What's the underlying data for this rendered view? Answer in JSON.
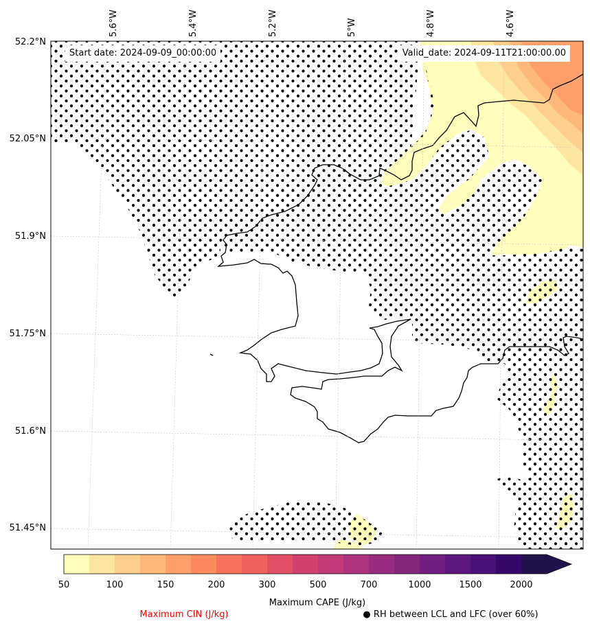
{
  "map": {
    "start_date": "Start date: 2024-09-09_00:00:00",
    "valid_date": "Valid_date: 2024-09-11T21:00:00.00",
    "lon_labels": [
      "5.6°W",
      "5.4°W",
      "5.2°W",
      "5°W",
      "4.8°W",
      "4.6°W"
    ],
    "lat_labels": [
      "52.2°N",
      "52.05°N",
      "51.9°N",
      "51.75°N",
      "51.6°N",
      "51.45°N"
    ],
    "extent": {
      "lon_min": -5.75,
      "lon_max": -4.42,
      "lat_min": 51.42,
      "lat_max": 52.2
    }
  },
  "colorbar": {
    "levels": [
      "50",
      "100",
      "150",
      "200",
      "300",
      "500",
      "700",
      "1000",
      "1500",
      "2000"
    ],
    "colors": [
      "#fffdbb",
      "#fee5a0",
      "#fecf8c",
      "#feb87b",
      "#fda06c",
      "#fc8a5f",
      "#f8735b",
      "#f0605d",
      "#e24e65",
      "#d2426f",
      "#bf3a76",
      "#ac337c",
      "#982d80",
      "#85277f",
      "#721f81",
      "#5e177f",
      "#4a1079",
      "#34096a",
      "#22124a"
    ],
    "extend": "max",
    "cape_label": "Maximum CAPE (J/kg)"
  },
  "legend": {
    "cin_label": "Maximum CIN (J/kg)",
    "cin_color": "#ff0000",
    "rh_label": "● RH between LCL and LFC (over 60%)"
  }
}
